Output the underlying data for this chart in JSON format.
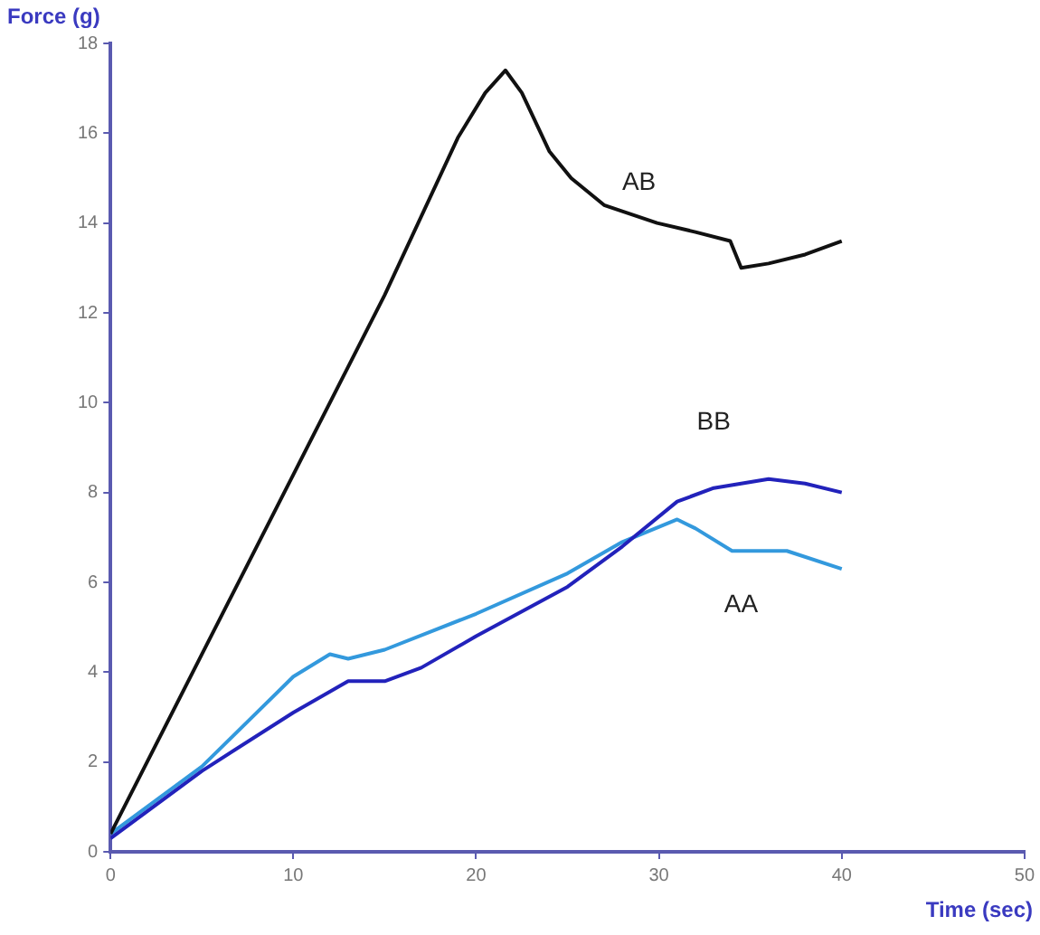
{
  "chart_data": {
    "type": "line",
    "xlabel": "Time (sec)",
    "ylabel": "Force (g)",
    "xlim": [
      0,
      50
    ],
    "xticks": [
      0,
      10,
      20,
      30,
      40,
      50
    ],
    "ylim": [
      0,
      18
    ],
    "yticks": [
      0,
      2,
      4,
      6,
      8,
      10,
      12,
      14,
      16,
      18
    ],
    "grid": false,
    "legend": false,
    "marker": "none",
    "line_style": "solid",
    "series": [
      {
        "name": "AB",
        "color": "#111111",
        "x": [
          0,
          5,
          10,
          15,
          19,
          20.5,
          21.6,
          22.5,
          24,
          25.2,
          27,
          29.9,
          32,
          33.9,
          34.5,
          36,
          38,
          40
        ],
        "values": [
          0.4,
          4.4,
          8.4,
          12.4,
          15.9,
          16.9,
          17.4,
          16.9,
          15.6,
          15.0,
          14.4,
          14.0,
          13.8,
          13.6,
          13.0,
          13.1,
          13.3,
          13.6
        ]
      },
      {
        "name": "BB",
        "color": "#2222bb",
        "x": [
          0,
          5,
          10,
          13,
          14.5,
          15,
          17,
          20,
          25,
          28,
          31,
          33,
          36,
          38,
          40
        ],
        "values": [
          0.3,
          1.8,
          3.1,
          3.8,
          3.8,
          3.8,
          4.1,
          4.8,
          5.9,
          6.8,
          7.8,
          8.1,
          8.3,
          8.2,
          8.0
        ]
      },
      {
        "name": "AA",
        "color": "#3399dd",
        "x": [
          0,
          5,
          10,
          12,
          13,
          15,
          20,
          25,
          28,
          31,
          32,
          34,
          37,
          40
        ],
        "values": [
          0.4,
          1.9,
          3.9,
          4.4,
          4.3,
          4.5,
          5.3,
          6.2,
          6.9,
          7.4,
          7.2,
          6.7,
          6.7,
          6.3
        ]
      }
    ]
  }
}
